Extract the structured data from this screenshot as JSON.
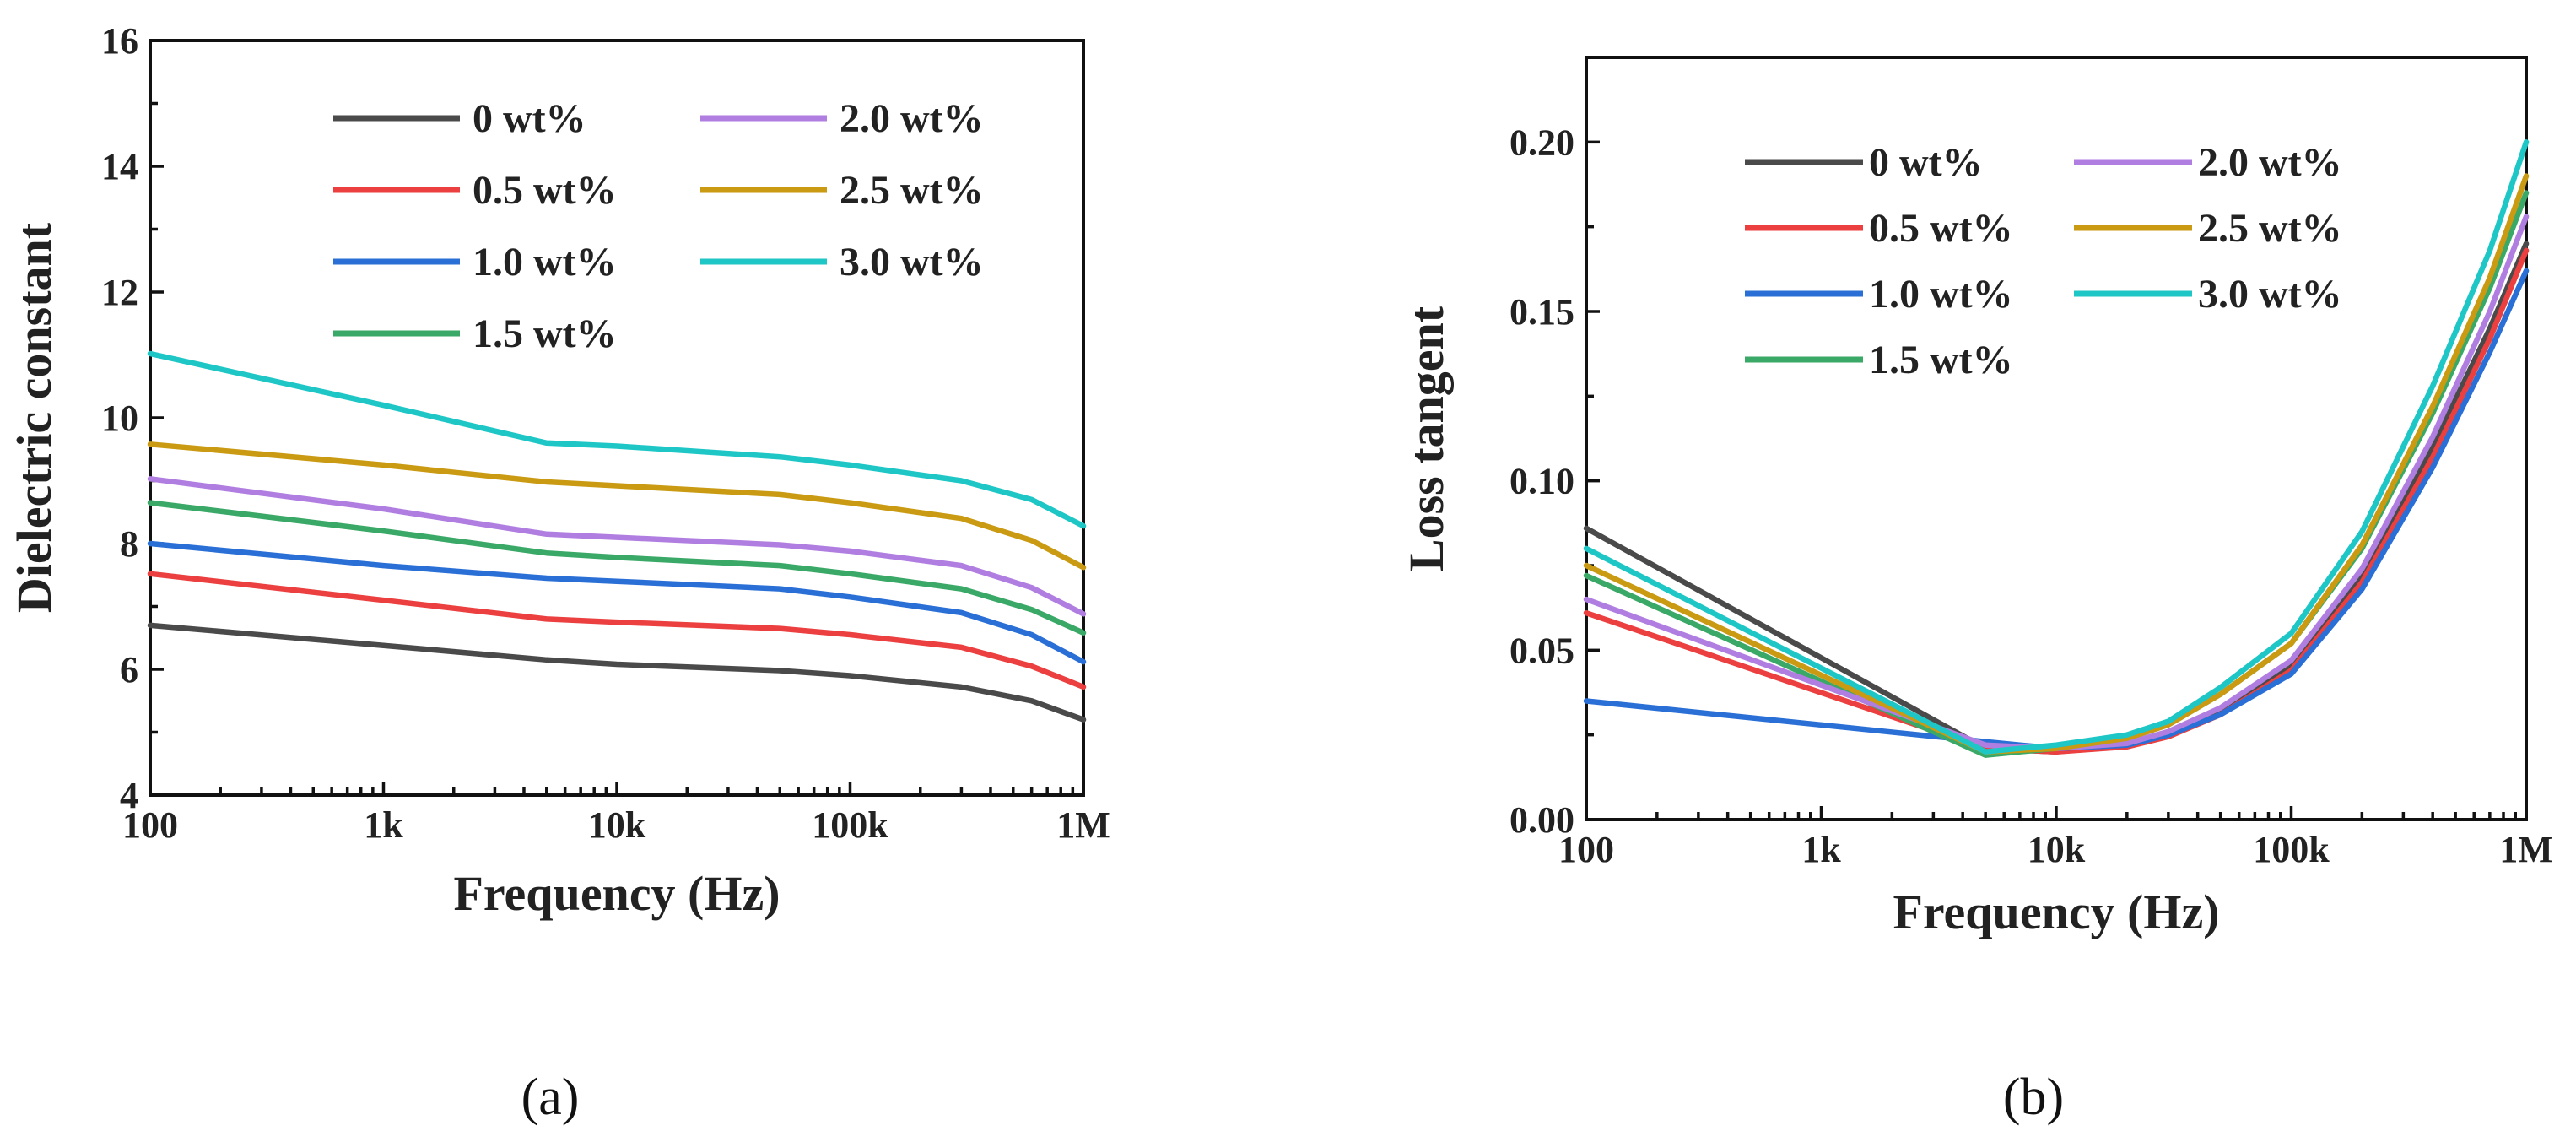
{
  "panels": {
    "a": {
      "label": "(a)"
    },
    "b": {
      "label": "(b)"
    }
  },
  "chart_data": [
    {
      "type": "line",
      "panel": "(a)",
      "xlabel": "Frequency (Hz)",
      "ylabel": "Dielectric constant",
      "xscale": "log",
      "xlim": [
        100,
        1000000
      ],
      "ylim": [
        4,
        16
      ],
      "xticks": [
        100,
        1000,
        10000,
        100000,
        1000000
      ],
      "xticklabels": [
        "100",
        "1k",
        "10k",
        "100k",
        "1M"
      ],
      "yticks": [
        4,
        6,
        8,
        10,
        12,
        14,
        16
      ],
      "yticklabels": [
        "4",
        "6",
        "8",
        "10",
        "12",
        "14",
        "16"
      ],
      "legend_position": "top-right",
      "x": [
        100,
        1000,
        5000,
        10000,
        50000,
        100000,
        300000,
        600000,
        1000000
      ],
      "series": [
        {
          "name": "0 wt%",
          "color": "#4a4a4a",
          "values": [
            6.7,
            6.38,
            6.15,
            6.08,
            5.98,
            5.9,
            5.72,
            5.5,
            5.2
          ]
        },
        {
          "name": "0.5 wt%",
          "color": "#ec3f3f",
          "values": [
            7.52,
            7.1,
            6.8,
            6.75,
            6.65,
            6.55,
            6.35,
            6.05,
            5.72
          ]
        },
        {
          "name": "1.0 wt%",
          "color": "#2a6fd6",
          "values": [
            8.0,
            7.65,
            7.45,
            7.4,
            7.28,
            7.15,
            6.9,
            6.55,
            6.12
          ]
        },
        {
          "name": "1.5 wt%",
          "color": "#3aa866",
          "values": [
            8.65,
            8.2,
            7.85,
            7.78,
            7.65,
            7.52,
            7.28,
            6.95,
            6.58
          ]
        },
        {
          "name": "2.0 wt%",
          "color": "#b07ee0",
          "values": [
            9.03,
            8.55,
            8.15,
            8.1,
            7.98,
            7.88,
            7.65,
            7.3,
            6.88
          ]
        },
        {
          "name": "2.5 wt%",
          "color": "#c99a12",
          "values": [
            9.58,
            9.25,
            8.98,
            8.92,
            8.78,
            8.65,
            8.4,
            8.05,
            7.62
          ]
        },
        {
          "name": "3.0 wt%",
          "color": "#1ec6c6",
          "values": [
            11.02,
            10.2,
            9.6,
            9.55,
            9.38,
            9.25,
            9.0,
            8.7,
            8.28
          ]
        }
      ]
    },
    {
      "type": "line",
      "panel": "(b)",
      "xlabel": "Frequency (Hz)",
      "ylabel": "Loss tangent",
      "xscale": "log",
      "xlim": [
        100,
        1000000
      ],
      "ylim": [
        0,
        0.225
      ],
      "xticks": [
        100,
        1000,
        10000,
        100000,
        1000000
      ],
      "xticklabels": [
        "100",
        "1k",
        "10k",
        "100k",
        "1M"
      ],
      "yticks": [
        0,
        0.05,
        0.1,
        0.15,
        0.2
      ],
      "yticklabels": [
        "0.00",
        "0.05",
        "0.10",
        "0.15",
        "0.20"
      ],
      "legend_position": "top-left",
      "x": [
        100,
        5000,
        7000,
        10000,
        20000,
        30000,
        50000,
        100000,
        200000,
        400000,
        700000,
        1000000
      ],
      "series": [
        {
          "name": "0 wt%",
          "color": "#4a4a4a",
          "values": [
            0.086,
            0.021,
            0.0205,
            0.02,
            0.022,
            0.025,
            0.032,
            0.045,
            0.072,
            0.11,
            0.145,
            0.17
          ]
        },
        {
          "name": "0.5 wt%",
          "color": "#ec3f3f",
          "values": [
            0.061,
            0.021,
            0.0205,
            0.02,
            0.0215,
            0.0245,
            0.031,
            0.044,
            0.07,
            0.107,
            0.142,
            0.168
          ]
        },
        {
          "name": "1.0 wt%",
          "color": "#2a6fd6",
          "values": [
            0.035,
            0.023,
            0.022,
            0.021,
            0.022,
            0.025,
            0.031,
            0.043,
            0.068,
            0.104,
            0.138,
            0.162
          ]
        },
        {
          "name": "1.5 wt%",
          "color": "#3aa866",
          "values": [
            0.072,
            0.019,
            0.02,
            0.021,
            0.024,
            0.028,
            0.037,
            0.052,
            0.08,
            0.12,
            0.157,
            0.185
          ]
        },
        {
          "name": "2.0 wt%",
          "color": "#b07ee0",
          "values": [
            0.065,
            0.022,
            0.0215,
            0.021,
            0.0225,
            0.026,
            0.033,
            0.047,
            0.074,
            0.113,
            0.15,
            0.178
          ]
        },
        {
          "name": "2.5 wt%",
          "color": "#c99a12",
          "values": [
            0.075,
            0.02,
            0.0205,
            0.021,
            0.024,
            0.028,
            0.037,
            0.052,
            0.081,
            0.122,
            0.16,
            0.19
          ]
        },
        {
          "name": "3.0 wt%",
          "color": "#1ec6c6",
          "values": [
            0.08,
            0.02,
            0.021,
            0.022,
            0.025,
            0.029,
            0.039,
            0.055,
            0.085,
            0.128,
            0.168,
            0.2
          ]
        }
      ]
    }
  ]
}
